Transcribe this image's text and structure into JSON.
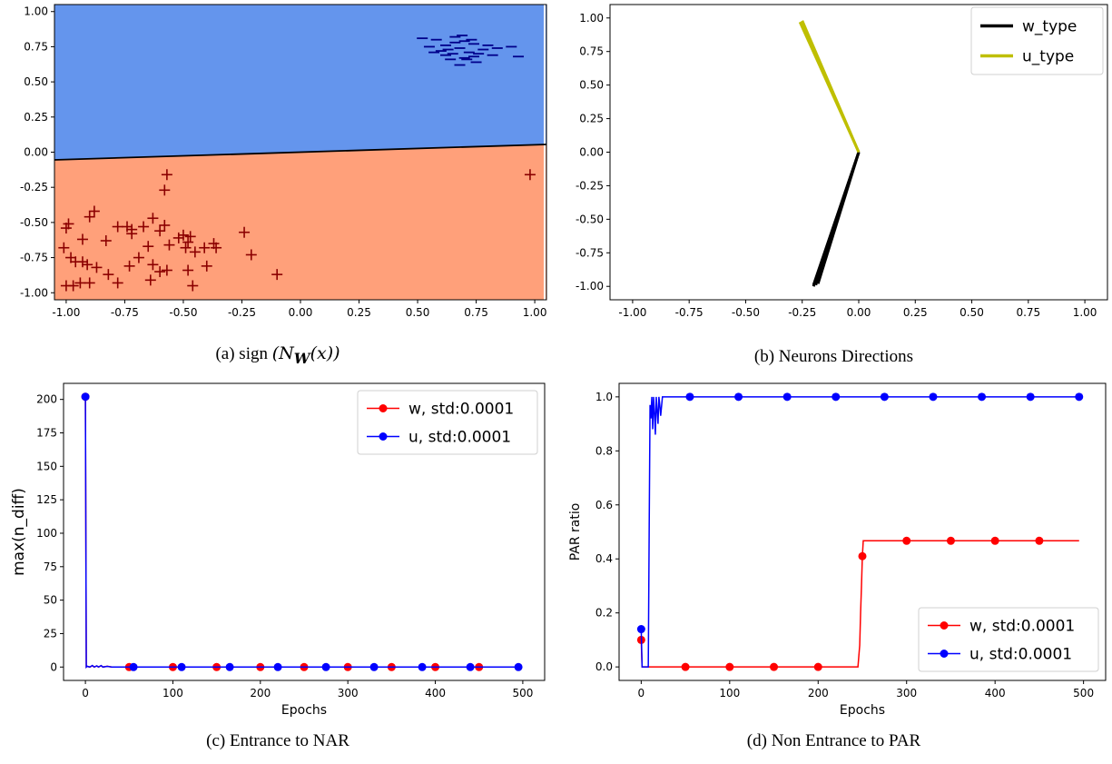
{
  "captions": {
    "a_prefix": "(a) sign",
    "a_math": "(N",
    "a_sub": "W",
    "a_math_end": "(x))",
    "b": "(b) Neurons Directions",
    "c": "(c) Entrance to NAR",
    "d": "(d) Non Entrance to PAR"
  },
  "colors": {
    "region_pos": "#6495ed",
    "region_neg": "#ffa07a",
    "minus_marker": "#00008b",
    "plus_marker": "#8b0000",
    "w_line": "#000000",
    "u_line": "#bfbf00",
    "w_series": "#ff0000",
    "u_series": "#0000ff"
  },
  "chart_data": [
    {
      "id": "a",
      "type": "scatter",
      "title": "",
      "xlabel": "",
      "ylabel": "",
      "xlim": [
        -1.05,
        1.05
      ],
      "ylim": [
        -1.05,
        1.05
      ],
      "xticks": [
        "-1.00",
        "-0.75",
        "-0.50",
        "-0.25",
        "0.00",
        "0.25",
        "0.50",
        "0.75",
        "1.00"
      ],
      "yticks": [
        "-1.00",
        "-0.75",
        "-0.50",
        "-0.25",
        "0.00",
        "0.25",
        "0.50",
        "0.75",
        "1.00"
      ],
      "xtick_values": [
        -1,
        -0.75,
        -0.5,
        -0.25,
        0,
        0.25,
        0.5,
        0.75,
        1
      ],
      "ytick_values": [
        -1,
        -0.75,
        -0.5,
        -0.25,
        0,
        0.25,
        0.5,
        0.75,
        1
      ],
      "boundary": [
        [
          -1.05,
          -0.055
        ],
        [
          1.05,
          0.055
        ]
      ],
      "series": [
        {
          "marker": "minus",
          "points": [
            [
              0.58,
              0.8
            ],
            [
              0.62,
              0.76
            ],
            [
              0.66,
              0.82
            ],
            [
              0.7,
              0.79
            ],
            [
              0.74,
              0.77
            ],
            [
              0.55,
              0.75
            ],
            [
              0.6,
              0.72
            ],
            [
              0.65,
              0.7
            ],
            [
              0.68,
              0.74
            ],
            [
              0.72,
              0.71
            ],
            [
              0.78,
              0.73
            ],
            [
              0.82,
              0.69
            ],
            [
              0.64,
              0.66
            ],
            [
              0.7,
              0.67
            ],
            [
              0.75,
              0.64
            ],
            [
              0.62,
              0.69
            ],
            [
              0.57,
              0.71
            ],
            [
              0.73,
              0.8
            ],
            [
              0.8,
              0.76
            ],
            [
              0.68,
              0.62
            ],
            [
              0.74,
              0.68
            ],
            [
              0.66,
              0.78
            ],
            [
              0.84,
              0.74
            ],
            [
              0.9,
              0.75
            ],
            [
              0.52,
              0.81
            ],
            [
              0.71,
              0.66
            ],
            [
              0.76,
              0.7
            ],
            [
              0.93,
              0.68
            ],
            [
              0.63,
              0.73
            ],
            [
              0.69,
              0.83
            ]
          ]
        },
        {
          "marker": "plus",
          "points": [
            [
              -0.57,
              -0.16
            ],
            [
              -0.58,
              -0.27
            ],
            [
              0.98,
              -0.16
            ],
            [
              -1.0,
              -0.54
            ],
            [
              -0.99,
              -0.51
            ],
            [
              -0.9,
              -0.46
            ],
            [
              -0.88,
              -0.42
            ],
            [
              -0.93,
              -0.62
            ],
            [
              -0.83,
              -0.63
            ],
            [
              -0.78,
              -0.53
            ],
            [
              -0.72,
              -0.55
            ],
            [
              -0.72,
              -0.58
            ],
            [
              -0.74,
              -0.53
            ],
            [
              -0.67,
              -0.53
            ],
            [
              -0.63,
              -0.47
            ],
            [
              -0.6,
              -0.56
            ],
            [
              -0.58,
              -0.52
            ],
            [
              -0.65,
              -0.67
            ],
            [
              -0.56,
              -0.66
            ],
            [
              -0.52,
              -0.61
            ],
            [
              -0.5,
              -0.59
            ],
            [
              -0.48,
              -0.64
            ],
            [
              -0.47,
              -0.6
            ],
            [
              -0.49,
              -0.68
            ],
            [
              -0.45,
              -0.71
            ],
            [
              -0.41,
              -0.68
            ],
            [
              -0.36,
              -0.68
            ],
            [
              -0.37,
              -0.65
            ],
            [
              -0.24,
              -0.57
            ],
            [
              -0.21,
              -0.73
            ],
            [
              -0.1,
              -0.87
            ],
            [
              -1.01,
              -0.68
            ],
            [
              -0.98,
              -0.75
            ],
            [
              -0.96,
              -0.78
            ],
            [
              -0.93,
              -0.78
            ],
            [
              -0.91,
              -0.8
            ],
            [
              -0.87,
              -0.82
            ],
            [
              -0.82,
              -0.87
            ],
            [
              -0.73,
              -0.81
            ],
            [
              -0.69,
              -0.75
            ],
            [
              -0.63,
              -0.8
            ],
            [
              -0.6,
              -0.85
            ],
            [
              -0.57,
              -0.84
            ],
            [
              -0.64,
              -0.91
            ],
            [
              -0.78,
              -0.93
            ],
            [
              -0.9,
              -0.93
            ],
            [
              -0.94,
              -0.93
            ],
            [
              -0.97,
              -0.95
            ],
            [
              -1.0,
              -0.95
            ],
            [
              -0.48,
              -0.84
            ],
            [
              -0.46,
              -0.95
            ],
            [
              -0.4,
              -0.81
            ]
          ]
        }
      ]
    },
    {
      "id": "b",
      "type": "line",
      "title": "",
      "xlabel": "",
      "ylabel": "",
      "xlim": [
        -1.1,
        1.1
      ],
      "ylim": [
        -1.1,
        1.1
      ],
      "xticks": [
        "-1.00",
        "-0.75",
        "-0.50",
        "-0.25",
        "0.00",
        "0.25",
        "0.50",
        "0.75",
        "1.00"
      ],
      "yticks": [
        "-1.00",
        "-0.75",
        "-0.50",
        "-0.25",
        "0.00",
        "0.25",
        "0.50",
        "0.75",
        "1.00"
      ],
      "xtick_values": [
        -1,
        -0.75,
        -0.5,
        -0.25,
        0,
        0.25,
        0.5,
        0.75,
        1
      ],
      "ytick_values": [
        -1,
        -0.75,
        -0.5,
        -0.25,
        0,
        0.25,
        0.5,
        0.75,
        1
      ],
      "legend_position": "upper right",
      "series": [
        {
          "name": "w_type",
          "color": "#000000",
          "lines": [
            [
              [
                0,
                0
              ],
              [
                -0.2,
                -0.99
              ]
            ],
            [
              [
                0,
                0
              ],
              [
                -0.19,
                -0.99
              ]
            ],
            [
              [
                0,
                0
              ],
              [
                -0.18,
                -0.98
              ]
            ],
            [
              [
                0,
                0
              ],
              [
                -0.2,
                -1.0
              ]
            ]
          ]
        },
        {
          "name": "u_type",
          "color": "#bfbf00",
          "lines": [
            [
              [
                0,
                0
              ],
              [
                -0.25,
                0.98
              ]
            ],
            [
              [
                0,
                0
              ],
              [
                -0.26,
                0.97
              ]
            ]
          ]
        }
      ]
    },
    {
      "id": "c",
      "type": "line",
      "title": "",
      "xlabel": "Epochs",
      "ylabel": "max(n_diff)",
      "xlim": [
        -25,
        525
      ],
      "ylim": [
        -10,
        212
      ],
      "xticks": [
        "0",
        "100",
        "200",
        "300",
        "400",
        "500"
      ],
      "yticks": [
        "0",
        "25",
        "50",
        "75",
        "100",
        "125",
        "150",
        "175",
        "200"
      ],
      "xtick_values": [
        0,
        100,
        200,
        300,
        400,
        500
      ],
      "ytick_values": [
        0,
        25,
        50,
        75,
        100,
        125,
        150,
        175,
        200
      ],
      "legend_position": "upper right",
      "series": [
        {
          "name": "w, std:0.0001",
          "color": "#ff0000",
          "x": [
            0,
            1,
            2,
            5,
            8,
            10,
            13,
            15,
            18,
            20,
            25,
            30,
            50,
            100,
            150,
            200,
            250,
            300,
            350,
            400,
            450,
            495
          ],
          "y": [
            202,
            0,
            0.5,
            0,
            1,
            0,
            0.8,
            0,
            1,
            0,
            0.6,
            0,
            0,
            0,
            0,
            0,
            0,
            0,
            0,
            0,
            0,
            0
          ],
          "markers_x": [
            0,
            50,
            100,
            150,
            200,
            250,
            300,
            350,
            400,
            450
          ],
          "markers_y": [
            202,
            0,
            0,
            0,
            0,
            0,
            0,
            0,
            0,
            0
          ]
        },
        {
          "name": "u, std:0.0001",
          "color": "#0000ff",
          "x": [
            0,
            1,
            2,
            5,
            8,
            10,
            13,
            15,
            18,
            20,
            25,
            30,
            55,
            110,
            165,
            220,
            275,
            330,
            385,
            440,
            495
          ],
          "y": [
            202,
            0,
            0.6,
            0,
            1.2,
            0,
            0.9,
            0,
            1.1,
            0,
            0.5,
            0,
            0,
            0,
            0,
            0,
            0,
            0,
            0,
            0,
            0
          ],
          "markers_x": [
            0,
            55,
            110,
            165,
            220,
            275,
            330,
            385,
            440,
            495
          ],
          "markers_y": [
            202,
            0,
            0,
            0,
            0,
            0,
            0,
            0,
            0,
            0
          ]
        }
      ]
    },
    {
      "id": "d",
      "type": "line",
      "title": "",
      "xlabel": "Epochs",
      "ylabel": "PAR ratio",
      "xlim": [
        -25,
        525
      ],
      "ylim": [
        -0.05,
        1.05
      ],
      "xticks": [
        "0",
        "100",
        "200",
        "300",
        "400",
        "500"
      ],
      "yticks": [
        "0.0",
        "0.2",
        "0.4",
        "0.6",
        "0.8",
        "1.0"
      ],
      "xtick_values": [
        0,
        100,
        200,
        300,
        400,
        500
      ],
      "ytick_values": [
        0,
        0.2,
        0.4,
        0.6,
        0.8,
        1.0
      ],
      "legend_position": "lower right",
      "series": [
        {
          "name": "w, std:0.0001",
          "color": "#ff0000",
          "x": [
            0,
            1,
            2,
            50,
            100,
            150,
            200,
            245,
            247,
            248,
            249,
            250,
            251,
            252,
            300,
            350,
            400,
            450,
            495
          ],
          "y": [
            0.1,
            0,
            0,
            0,
            0,
            0,
            0,
            0,
            0.08,
            0.2,
            0.3,
            0.41,
            0.467,
            0.467,
            0.467,
            0.467,
            0.467,
            0.467,
            0.467
          ],
          "markers_x": [
            0,
            50,
            100,
            150,
            200,
            250,
            300,
            350,
            400,
            450
          ],
          "markers_y": [
            0.1,
            0,
            0,
            0,
            0,
            0.41,
            0.467,
            0.467,
            0.467,
            0.467
          ]
        },
        {
          "name": "u, std:0.0001",
          "color": "#0000ff",
          "x": [
            0,
            1,
            2,
            8,
            9,
            10,
            11,
            12,
            13,
            14,
            15,
            16,
            17,
            18,
            19,
            20,
            21,
            22,
            24,
            26,
            55,
            110,
            165,
            220,
            275,
            330,
            385,
            440,
            495
          ],
          "y": [
            0.14,
            0,
            0,
            0,
            0.5,
            0.97,
            0.92,
            1.0,
            0.88,
            1.0,
            0.94,
            0.86,
            1.0,
            0.95,
            0.9,
            1.0,
            0.97,
            0.93,
            1.0,
            1.0,
            1.0,
            1.0,
            1.0,
            1.0,
            1.0,
            1.0,
            1.0,
            1.0,
            1.0
          ],
          "markers_x": [
            0,
            55,
            110,
            165,
            220,
            275,
            330,
            385,
            440,
            495
          ],
          "markers_y": [
            0.14,
            1,
            1,
            1,
            1,
            1,
            1,
            1,
            1,
            1
          ]
        }
      ]
    }
  ]
}
